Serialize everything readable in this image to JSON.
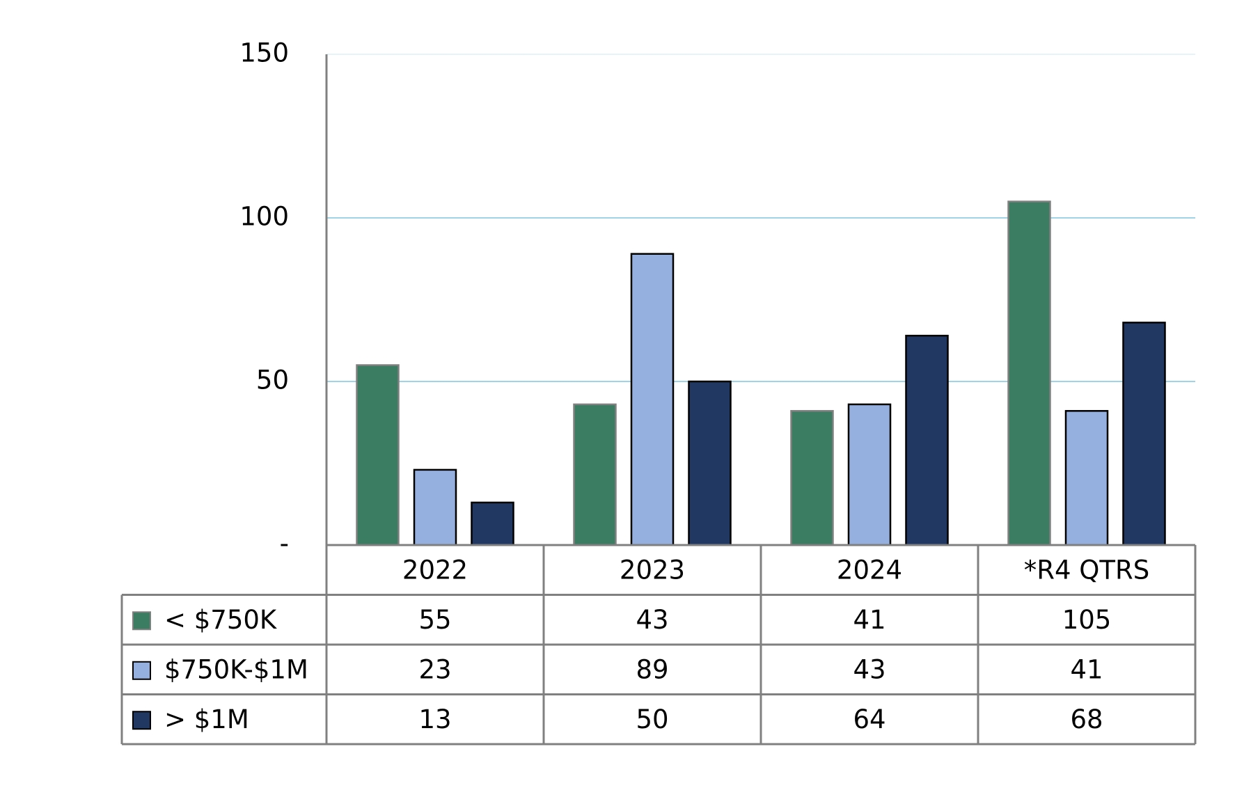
{
  "chart_data": {
    "type": "bar",
    "categories": [
      "2022",
      "2023",
      "2024",
      "*R4 QTRS"
    ],
    "series": [
      {
        "name": "< $750K",
        "color": "#3a7d62",
        "values": [
          55,
          43,
          41,
          105
        ]
      },
      {
        "name": "$750K-$1M",
        "color": "#95b0de",
        "values": [
          23,
          89,
          43,
          41
        ]
      },
      {
        "name": "> $1M",
        "color": "#213863",
        "values": [
          13,
          50,
          64,
          68
        ]
      }
    ],
    "ylim": [
      0,
      150
    ],
    "yticks": [
      {
        "value": 0,
        "label": "-"
      },
      50,
      100,
      150
    ],
    "grid": true
  }
}
